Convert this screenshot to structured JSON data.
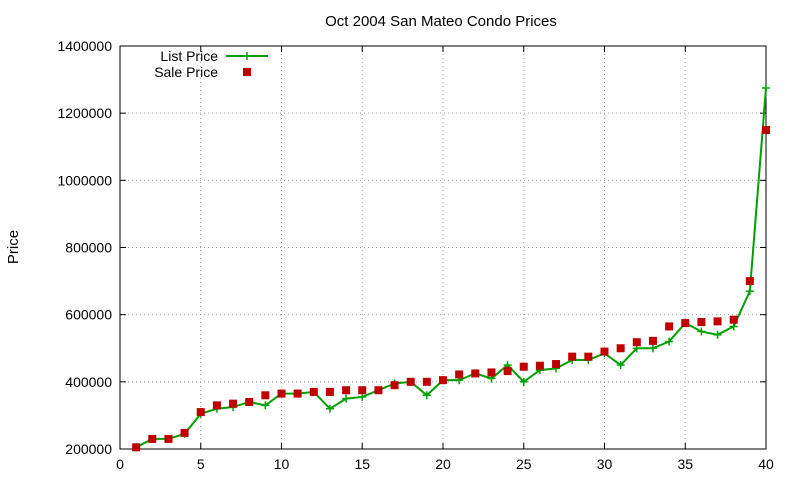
{
  "chart_data": {
    "type": "line",
    "title": "Oct 2004 San Mateo Condo Prices",
    "xlabel": "",
    "ylabel": "Price",
    "xlim": [
      0,
      40
    ],
    "ylim": [
      200000,
      1400000
    ],
    "x_ticks": [
      0,
      5,
      10,
      15,
      20,
      25,
      30,
      35,
      40
    ],
    "y_ticks": [
      200000,
      400000,
      600000,
      800000,
      1000000,
      1200000,
      1400000
    ],
    "grid": true,
    "legend_position": "top-left",
    "series": [
      {
        "name": "List Price",
        "style": "line-with-plus-markers",
        "color": "#00a000",
        "x": [
          1,
          2,
          3,
          4,
          5,
          6,
          7,
          8,
          9,
          10,
          11,
          12,
          13,
          14,
          15,
          16,
          17,
          18,
          19,
          20,
          21,
          22,
          23,
          24,
          25,
          26,
          27,
          28,
          29,
          30,
          31,
          32,
          33,
          34,
          35,
          36,
          37,
          38,
          39,
          40
        ],
        "y": [
          205000,
          230000,
          230000,
          245000,
          305000,
          320000,
          325000,
          340000,
          330000,
          365000,
          365000,
          370000,
          320000,
          350000,
          355000,
          375000,
          395000,
          400000,
          360000,
          405000,
          405000,
          425000,
          410000,
          450000,
          400000,
          435000,
          440000,
          465000,
          465000,
          485000,
          450000,
          500000,
          500000,
          520000,
          575000,
          550000,
          540000,
          565000,
          670000,
          1275000
        ]
      },
      {
        "name": "Sale Price",
        "style": "square-markers",
        "color": "#c00000",
        "x": [
          1,
          2,
          3,
          4,
          5,
          6,
          7,
          8,
          9,
          10,
          11,
          12,
          13,
          14,
          15,
          16,
          17,
          18,
          19,
          20,
          21,
          22,
          23,
          24,
          25,
          26,
          27,
          28,
          29,
          30,
          31,
          32,
          33,
          34,
          35,
          36,
          37,
          38,
          39,
          40
        ],
        "y": [
          205000,
          230000,
          230000,
          248000,
          310000,
          330000,
          335000,
          340000,
          360000,
          365000,
          365000,
          370000,
          370000,
          375000,
          375000,
          375000,
          390000,
          400000,
          400000,
          405000,
          422000,
          425000,
          428000,
          432000,
          445000,
          448000,
          453000,
          475000,
          475000,
          490000,
          500000,
          518000,
          522000,
          565000,
          575000,
          578000,
          580000,
          585000,
          700000,
          1150000
        ]
      }
    ]
  }
}
